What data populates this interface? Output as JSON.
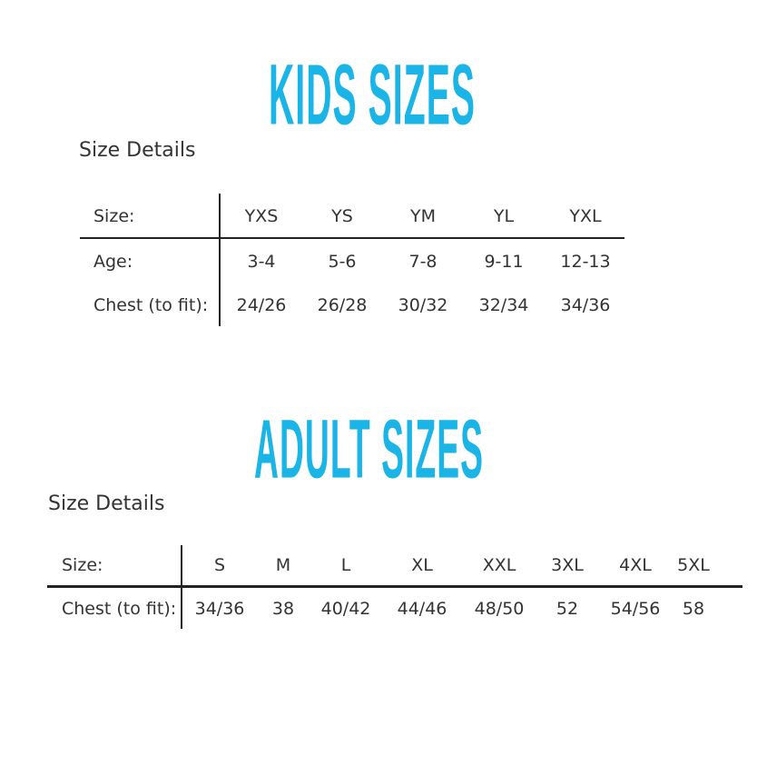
{
  "kids": {
    "title": "KIDS SIZES",
    "subtitle": "Size Details",
    "row_labels": [
      "Size:",
      "Age:",
      "Chest (to fit):"
    ],
    "sizes": [
      "YXS",
      "YS",
      "YM",
      "YL",
      "YXL"
    ],
    "ages": [
      "3-4",
      "5-6",
      "7-8",
      "9-11",
      "12-13"
    ],
    "chest": [
      "24/26",
      "26/28",
      "30/32",
      "32/34",
      "34/36"
    ]
  },
  "adult": {
    "title": "ADULT SIZES",
    "subtitle": "Size Details",
    "row_labels": [
      "Size:",
      "Chest (to fit):"
    ],
    "sizes": [
      "S",
      "M",
      "L",
      "XL",
      "XXL",
      "3XL",
      "4XL",
      "5XL"
    ],
    "chest": [
      "34/36",
      "38",
      "40/42",
      "44/46",
      "48/50",
      "52",
      "54/56",
      "58"
    ]
  },
  "colors": {
    "title": "#1ab4e6"
  }
}
